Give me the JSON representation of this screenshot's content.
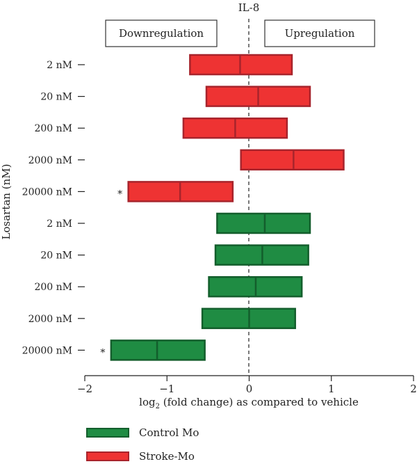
{
  "chart_data": {
    "type": "floating-bar",
    "title": "IL-8",
    "xlabel_prefix": "log",
    "xlabel_sub": "2",
    "xlabel_rest": " (fold change) as compared to vehicle",
    "ylabel": "Losartan (nM)",
    "xlim": [
      -2,
      2
    ],
    "xticks": [
      "−2",
      "−1",
      "0",
      "1",
      "2"
    ],
    "xtick_values": [
      -2,
      -1,
      0,
      1,
      2
    ],
    "regions": [
      "Downregulation",
      "Upregulation"
    ],
    "categories": [
      "2 nM",
      "20 nM",
      "200 nM",
      "2000 nM",
      "20000 nM",
      "2 nM",
      "20 nM",
      "200 nM",
      "2000 nM",
      "20000 nM"
    ],
    "series": [
      {
        "name": "Stroke-Mo",
        "color": "#ee3333",
        "edge": "#a8242c",
        "rows": [
          0,
          1,
          2,
          3,
          4
        ],
        "low": [
          -0.72,
          -0.52,
          -0.8,
          -0.1,
          -1.47
        ],
        "mid": [
          -0.11,
          0.11,
          -0.17,
          0.54,
          -0.84
        ],
        "high": [
          0.52,
          0.74,
          0.46,
          1.15,
          -0.2
        ],
        "significant": [
          false,
          false,
          false,
          false,
          true
        ]
      },
      {
        "name": "Control Mo",
        "color": "#1f8c43",
        "edge": "#135e2c",
        "rows": [
          5,
          6,
          7,
          8,
          9
        ],
        "low": [
          -0.39,
          -0.41,
          -0.49,
          -0.57,
          -1.68
        ],
        "mid": [
          0.19,
          0.16,
          0.08,
          0.0,
          -1.12
        ],
        "high": [
          0.74,
          0.72,
          0.64,
          0.56,
          -0.54
        ],
        "significant": [
          false,
          false,
          false,
          false,
          true
        ]
      }
    ],
    "significance_marker": "*"
  },
  "legend": [
    {
      "label": "Control Mo",
      "color": "#1f8c43",
      "edge": "#135e2c"
    },
    {
      "label": "Stroke-Mo",
      "color": "#ee3333",
      "edge": "#a8242c"
    }
  ]
}
